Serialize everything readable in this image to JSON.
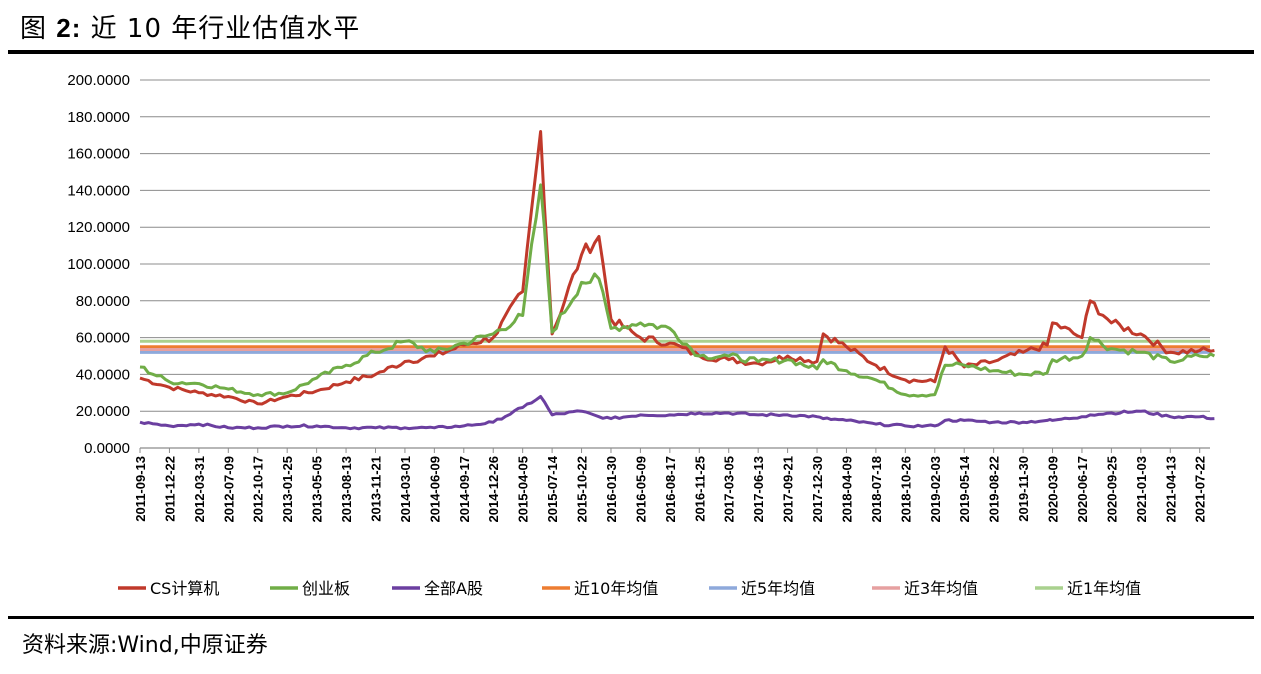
{
  "header": {
    "title_prefix": "图",
    "title_number": "2:",
    "title_text": "近 10 年行业估值水平"
  },
  "footer": {
    "source": "资料来源:Wind,中原证券"
  },
  "chart_data": {
    "type": "line",
    "yticks": [
      "0.0000",
      "20.0000",
      "40.0000",
      "60.0000",
      "80.0000",
      "100.0000",
      "120.0000",
      "140.0000",
      "160.0000",
      "180.0000",
      "200.0000"
    ],
    "ylim": [
      0,
      200
    ],
    "grid": true,
    "legend_position": "bottom",
    "xticks": [
      "2011-09-13",
      "2011-12-22",
      "2012-03-31",
      "2012-07-09",
      "2012-10-17",
      "2013-01-25",
      "2013-05-05",
      "2013-08-13",
      "2013-11-21",
      "2014-03-01",
      "2014-06-09",
      "2014-09-17",
      "2014-12-26",
      "2015-04-05",
      "2015-07-14",
      "2015-10-22",
      "2016-01-30",
      "2016-05-09",
      "2016-08-17",
      "2016-11-25",
      "2017-03-05",
      "2017-06-13",
      "2017-09-21",
      "2017-12-30",
      "2018-04-09",
      "2018-07-18",
      "2018-10-26",
      "2019-02-03",
      "2019-05-14",
      "2019-08-22",
      "2019-11-30",
      "2020-03-09",
      "2020-06-17",
      "2020-09-25",
      "2021-01-03",
      "2021-04-13",
      "2021-07-22"
    ],
    "x": [
      "2011-09-13",
      "2011-12-22",
      "2012-03-31",
      "2012-07-09",
      "2012-10-17",
      "2013-01-25",
      "2013-05-05",
      "2013-08-13",
      "2013-11-21",
      "2014-03-01",
      "2014-06-09",
      "2014-09-17",
      "2014-12-26",
      "2015-04-05",
      "2015-06-05",
      "2015-07-14",
      "2015-10-22",
      "2015-12-20",
      "2016-01-30",
      "2016-05-09",
      "2016-08-17",
      "2016-11-25",
      "2017-03-05",
      "2017-06-13",
      "2017-09-21",
      "2017-12-30",
      "2018-01-20",
      "2018-04-09",
      "2018-07-18",
      "2018-10-26",
      "2019-02-03",
      "2019-03-10",
      "2019-05-14",
      "2019-08-22",
      "2019-11-30",
      "2020-02-20",
      "2020-03-09",
      "2020-06-17",
      "2020-07-15",
      "2020-09-25",
      "2021-01-03",
      "2021-04-13",
      "2021-07-22",
      "2021-09-10"
    ],
    "series": [
      {
        "name": "CS计算机",
        "color": "#C0392B",
        "values": [
          38,
          33,
          30,
          28,
          24,
          28,
          31,
          36,
          40,
          47,
          50,
          56,
          60,
          85,
          172,
          62,
          105,
          115,
          70,
          60,
          57,
          50,
          48,
          46,
          50,
          47,
          62,
          55,
          45,
          37,
          36,
          55,
          44,
          47,
          52,
          56,
          68,
          60,
          80,
          68,
          62,
          52,
          53,
          53
        ]
      },
      {
        "name": "创业板",
        "color": "#70AD47",
        "values": [
          44,
          36,
          35,
          32,
          29,
          30,
          38,
          45,
          52,
          58,
          52,
          57,
          62,
          72,
          143,
          63,
          90,
          92,
          65,
          68,
          65,
          50,
          50,
          47,
          48,
          43,
          48,
          42,
          37,
          29,
          29,
          45,
          45,
          42,
          40,
          41,
          48,
          50,
          60,
          54,
          52,
          47,
          50,
          50
        ]
      },
      {
        "name": "全部A股",
        "color": "#6B3FA0",
        "values": [
          14,
          12,
          13,
          11,
          11,
          12,
          12,
          11,
          11,
          11,
          11,
          12,
          14,
          22,
          28,
          18,
          20,
          17,
          16,
          18,
          18,
          19,
          19,
          18,
          18,
          17,
          16,
          15,
          13,
          12,
          12,
          15,
          15,
          14,
          14,
          15,
          15,
          17,
          18,
          19,
          20,
          17,
          17,
          16
        ]
      },
      {
        "name": "近10年均值",
        "color": "#ED7D31",
        "constant": 55
      },
      {
        "name": "近5年均值",
        "color": "#8EA9DB",
        "constant": 52
      },
      {
        "name": "近3年均值",
        "color": "#E6A0A0",
        "constant": 53.5
      },
      {
        "name": "近1年均值",
        "color": "#A9D18E",
        "constant": 58
      }
    ]
  }
}
